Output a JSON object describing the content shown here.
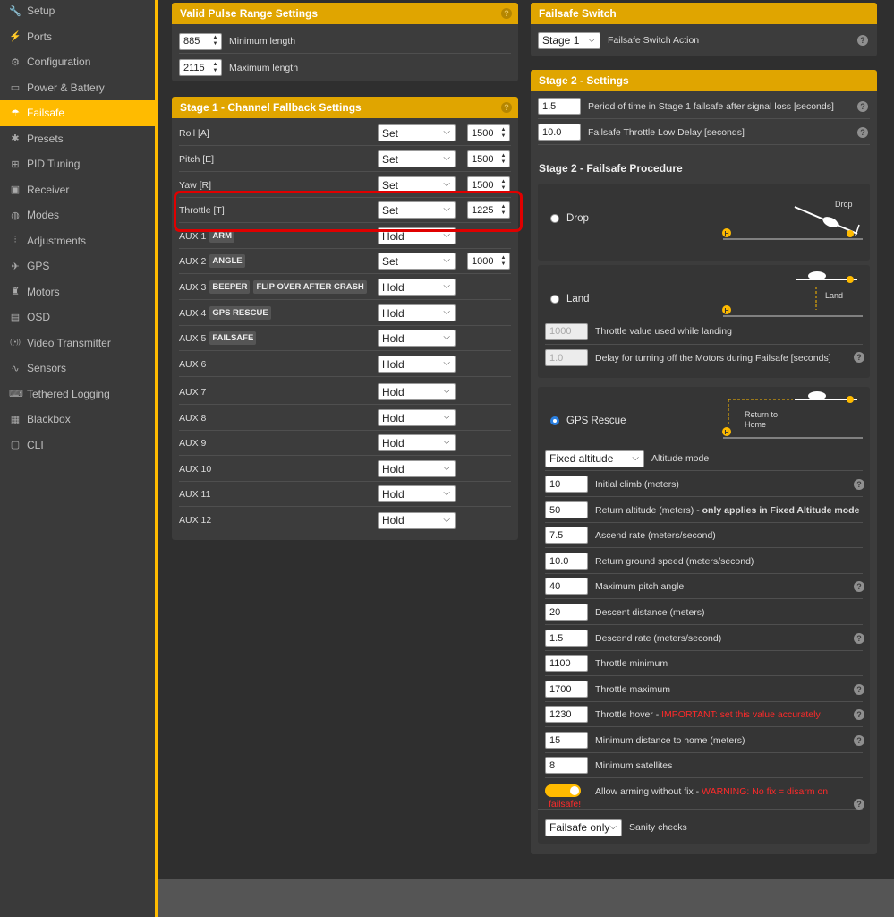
{
  "sidebar": {
    "items": [
      {
        "label": "Setup",
        "icon": "wrench-icon",
        "glyph": "🔧"
      },
      {
        "label": "Ports",
        "icon": "plug-icon",
        "glyph": "⚡"
      },
      {
        "label": "Configuration",
        "icon": "gear-icon",
        "glyph": "⚙"
      },
      {
        "label": "Power & Battery",
        "icon": "battery-icon",
        "glyph": "▭"
      },
      {
        "label": "Failsafe",
        "icon": "parachute-icon",
        "glyph": "☂"
      },
      {
        "label": "Presets",
        "icon": "presets-icon",
        "glyph": "✱"
      },
      {
        "label": "PID Tuning",
        "icon": "pid-icon",
        "glyph": "⊞"
      },
      {
        "label": "Receiver",
        "icon": "receiver-icon",
        "glyph": "▣"
      },
      {
        "label": "Modes",
        "icon": "modes-icon",
        "glyph": "◍"
      },
      {
        "label": "Adjustments",
        "icon": "sliders-icon",
        "glyph": "⫶"
      },
      {
        "label": "GPS",
        "icon": "satellite-icon",
        "glyph": "✈"
      },
      {
        "label": "Motors",
        "icon": "motor-icon",
        "glyph": "♜"
      },
      {
        "label": "OSD",
        "icon": "osd-icon",
        "glyph": "▤"
      },
      {
        "label": "Video Transmitter",
        "icon": "broadcast-icon",
        "glyph": "((•))"
      },
      {
        "label": "Sensors",
        "icon": "pulse-icon",
        "glyph": "∿"
      },
      {
        "label": "Tethered Logging",
        "icon": "keyboard-icon",
        "glyph": "⌨"
      },
      {
        "label": "Blackbox",
        "icon": "blackbox-icon",
        "glyph": "▦"
      },
      {
        "label": "CLI",
        "icon": "terminal-icon",
        "glyph": "▢"
      }
    ],
    "active_index": 4
  },
  "pulse": {
    "title": "Valid Pulse Range Settings",
    "help": "?",
    "min_value": "885",
    "min_label": "Minimum length",
    "max_value": "2115",
    "max_label": "Maximum length"
  },
  "stage1": {
    "title": "Stage 1 - Channel Fallback Settings",
    "help": "?",
    "rows": [
      {
        "label": "Roll [A]",
        "mode": "Set",
        "value": "1500",
        "tags": []
      },
      {
        "label": "Pitch [E]",
        "mode": "Set",
        "value": "1500",
        "tags": []
      },
      {
        "label": "Yaw [R]",
        "mode": "Set",
        "value": "1500",
        "tags": []
      },
      {
        "label": "Throttle [T]",
        "mode": "Set",
        "value": "1225",
        "tags": []
      },
      {
        "label": "AUX 1",
        "mode": "Hold",
        "tags": [
          "ARM"
        ]
      },
      {
        "label": "AUX 2",
        "mode": "Set",
        "value": "1000",
        "tags": [
          "ANGLE"
        ]
      },
      {
        "label": "AUX 3",
        "mode": "Hold",
        "tags": [
          "BEEPER",
          "FLIP OVER AFTER CRASH"
        ]
      },
      {
        "label": "AUX 4",
        "mode": "Hold",
        "tags": [
          "GPS RESCUE"
        ]
      },
      {
        "label": "AUX 5",
        "mode": "Hold",
        "tags": [
          "FAILSAFE"
        ]
      },
      {
        "label": "AUX 6",
        "mode": "Hold",
        "tags": []
      },
      {
        "label": "AUX 7",
        "mode": "Hold",
        "tags": []
      },
      {
        "label": "AUX 8",
        "mode": "Hold",
        "tags": []
      },
      {
        "label": "AUX 9",
        "mode": "Hold",
        "tags": []
      },
      {
        "label": "AUX 10",
        "mode": "Hold",
        "tags": []
      },
      {
        "label": "AUX 11",
        "mode": "Hold",
        "tags": []
      },
      {
        "label": "AUX 12",
        "mode": "Hold",
        "tags": []
      }
    ]
  },
  "switch": {
    "title": "Failsafe Switch",
    "select": "Stage 1",
    "label": "Failsafe Switch Action",
    "help": "?"
  },
  "stage2": {
    "title": "Stage 2 - Settings",
    "period_value": "1.5",
    "period_label": "Period of time in Stage 1 failsafe after signal loss [seconds]",
    "delay_value": "10.0",
    "delay_label": "Failsafe Throttle Low Delay [seconds]",
    "help": "?"
  },
  "procedure": {
    "title": "Stage 2 - Failsafe Procedure",
    "drop": {
      "label": "Drop",
      "diagram_label": "Drop"
    },
    "land": {
      "label": "Land",
      "diagram_label": "Land",
      "throttle_value": "1000",
      "throttle_label": "Throttle value used while landing",
      "delay_value": "1.0",
      "delay_label": "Delay for turning off the Motors during Failsafe [seconds]"
    },
    "gps": {
      "label": "GPS Rescue",
      "diagram_label_1": "Return to",
      "diagram_label_2": "Home",
      "home_marker": "H",
      "altitude_mode": "Fixed altitude",
      "altitude_mode_label": "Altitude mode",
      "fields": [
        {
          "value": "10",
          "label": "Initial climb (meters)",
          "help": true
        },
        {
          "value": "50",
          "label": "Return altitude (meters) - ",
          "bold": "only applies in Fixed Altitude mode",
          "help": false
        },
        {
          "value": "7.5",
          "label": "Ascend rate (meters/second)",
          "help": false
        },
        {
          "value": "10.0",
          "label": "Return ground speed (meters/second)",
          "help": false
        },
        {
          "value": "40",
          "label": "Maximum pitch angle",
          "help": true
        },
        {
          "value": "20",
          "label": "Descent distance (meters)",
          "help": false
        },
        {
          "value": "1.5",
          "label": "Descend rate (meters/second)",
          "help": true
        },
        {
          "value": "1100",
          "label": "Throttle minimum",
          "help": false
        },
        {
          "value": "1700",
          "label": "Throttle maximum",
          "help": true
        },
        {
          "value": "1230",
          "label": "Throttle hover - ",
          "red": "IMPORTANT: set this value accurately",
          "help": true
        },
        {
          "value": "15",
          "label": "Minimum distance to home (meters)",
          "help": true
        },
        {
          "value": "8",
          "label": "Minimum satellites",
          "help": false
        }
      ],
      "arming_label": "Allow arming without fix - ",
      "arming_warning_1": "WARNING: No fix = disarm on",
      "arming_warning_2": "failsafe!",
      "sanity_value": "Failsafe only",
      "sanity_label": "Sanity checks"
    }
  },
  "colors": {
    "accent": "#ffbb00",
    "header": "#e0a500",
    "highlight": "#e00000",
    "radio_on": "#2a7fe0",
    "warning": "#ff2a2a"
  }
}
